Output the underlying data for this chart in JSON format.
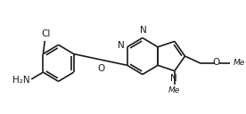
{
  "bg_color": "#ffffff",
  "line_color": "#1a1a1a",
  "line_width": 1.2,
  "font_size": 7.5,
  "figsize": [
    2.76,
    1.28
  ],
  "dpi": 100,
  "xlim": [
    0,
    276
  ],
  "ylim": [
    0,
    128
  ]
}
